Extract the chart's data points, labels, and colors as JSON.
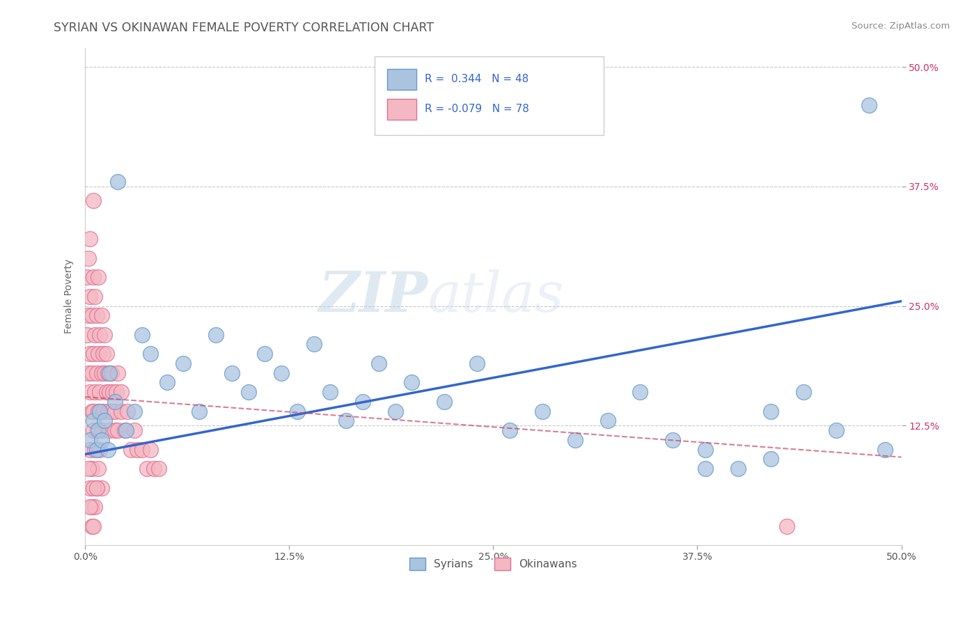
{
  "title": "SYRIAN VS OKINAWAN FEMALE POVERTY CORRELATION CHART",
  "source": "Source: ZipAtlas.com",
  "ylabel": "Female Poverty",
  "xlim": [
    0.0,
    0.5
  ],
  "ylim": [
    0.0,
    0.52
  ],
  "xtick_labels": [
    "0.0%",
    "12.5%",
    "25.0%",
    "37.5%",
    "50.0%"
  ],
  "xtick_vals": [
    0.0,
    0.125,
    0.25,
    0.375,
    0.5
  ],
  "ytick_labels": [
    "12.5%",
    "25.0%",
    "37.5%",
    "50.0%"
  ],
  "ytick_vals": [
    0.125,
    0.25,
    0.375,
    0.5
  ],
  "syrian_color": "#aac4e0",
  "okinawan_color": "#f4b8c4",
  "syrian_edge": "#6699cc",
  "okinawan_edge": "#e07090",
  "syrian_line_color": "#3366cc",
  "okinawan_line_color": "#cc4466",
  "watermark_zip": "ZIP",
  "watermark_atlas": "atlas",
  "background_color": "#ffffff",
  "grid_color": "#c8c8c8",
  "title_color": "#555555",
  "syrian_x": [
    0.003,
    0.005,
    0.007,
    0.008,
    0.009,
    0.01,
    0.012,
    0.014,
    0.015,
    0.018,
    0.02,
    0.025,
    0.03,
    0.035,
    0.04,
    0.05,
    0.06,
    0.07,
    0.08,
    0.09,
    0.1,
    0.11,
    0.12,
    0.13,
    0.14,
    0.15,
    0.16,
    0.17,
    0.18,
    0.19,
    0.2,
    0.22,
    0.24,
    0.26,
    0.28,
    0.3,
    0.32,
    0.34,
    0.36,
    0.38,
    0.4,
    0.42,
    0.44,
    0.46,
    0.48,
    0.49,
    0.42,
    0.38
  ],
  "syrian_y": [
    0.11,
    0.13,
    0.1,
    0.12,
    0.14,
    0.11,
    0.13,
    0.1,
    0.18,
    0.15,
    0.38,
    0.12,
    0.14,
    0.22,
    0.2,
    0.17,
    0.19,
    0.14,
    0.22,
    0.18,
    0.16,
    0.2,
    0.18,
    0.14,
    0.21,
    0.16,
    0.13,
    0.15,
    0.19,
    0.14,
    0.17,
    0.15,
    0.19,
    0.12,
    0.14,
    0.11,
    0.13,
    0.16,
    0.11,
    0.1,
    0.08,
    0.14,
    0.16,
    0.12,
    0.46,
    0.1,
    0.09,
    0.08
  ],
  "okinawan_x": [
    0.001,
    0.001,
    0.002,
    0.002,
    0.002,
    0.003,
    0.003,
    0.003,
    0.003,
    0.004,
    0.004,
    0.004,
    0.005,
    0.005,
    0.005,
    0.005,
    0.006,
    0.006,
    0.006,
    0.007,
    0.007,
    0.007,
    0.008,
    0.008,
    0.008,
    0.009,
    0.009,
    0.01,
    0.01,
    0.01,
    0.011,
    0.011,
    0.012,
    0.012,
    0.013,
    0.013,
    0.014,
    0.014,
    0.015,
    0.015,
    0.016,
    0.016,
    0.017,
    0.018,
    0.018,
    0.019,
    0.02,
    0.02,
    0.022,
    0.022,
    0.024,
    0.026,
    0.028,
    0.03,
    0.032,
    0.035,
    0.038,
    0.04,
    0.042,
    0.045,
    0.003,
    0.004,
    0.005,
    0.006,
    0.007,
    0.008,
    0.009,
    0.01,
    0.002,
    0.003,
    0.004,
    0.005,
    0.006,
    0.007,
    0.003,
    0.004,
    0.005,
    0.43
  ],
  "okinawan_y": [
    0.22,
    0.28,
    0.18,
    0.24,
    0.3,
    0.16,
    0.2,
    0.26,
    0.32,
    0.18,
    0.24,
    0.14,
    0.2,
    0.28,
    0.36,
    0.14,
    0.22,
    0.16,
    0.26,
    0.18,
    0.24,
    0.12,
    0.2,
    0.28,
    0.14,
    0.22,
    0.16,
    0.18,
    0.24,
    0.12,
    0.2,
    0.14,
    0.18,
    0.22,
    0.16,
    0.2,
    0.14,
    0.18,
    0.16,
    0.12,
    0.14,
    0.18,
    0.16,
    0.12,
    0.14,
    0.16,
    0.12,
    0.18,
    0.14,
    0.16,
    0.12,
    0.14,
    0.1,
    0.12,
    0.1,
    0.1,
    0.08,
    0.1,
    0.08,
    0.08,
    0.1,
    0.08,
    0.12,
    0.1,
    0.06,
    0.08,
    0.1,
    0.06,
    0.08,
    0.06,
    0.04,
    0.06,
    0.04,
    0.06,
    0.04,
    0.02,
    0.02,
    0.02
  ]
}
